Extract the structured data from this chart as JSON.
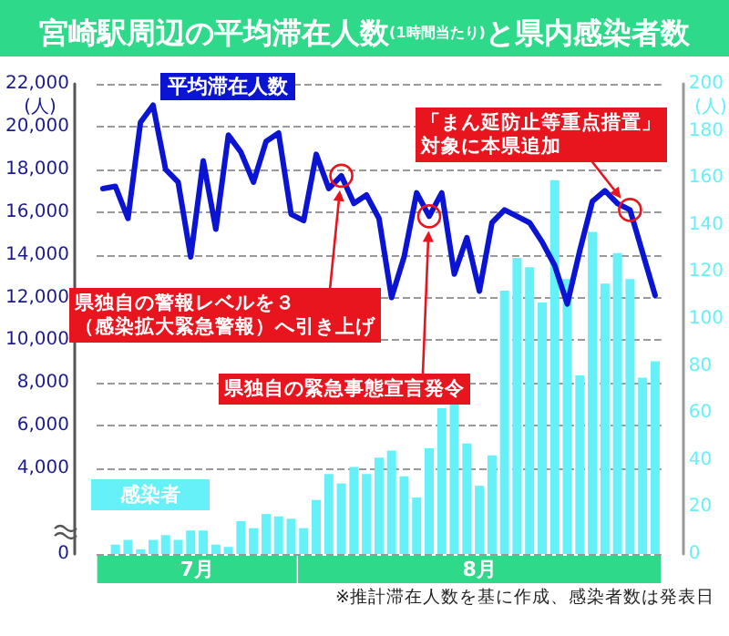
{
  "chart_data": {
    "type": "bar",
    "title": "宮崎駅周辺の平均滞在人数(1時間当たり)と県内感染者数",
    "ylabel": "(人)",
    "y2label": "(人)",
    "categories": [
      null,
      null,
      null,
      null,
      null,
      null,
      null,
      null,
      null,
      null,
      null,
      null,
      null,
      null,
      null,
      null,
      null,
      null,
      null,
      null,
      null,
      null,
      null,
      null,
      null,
      null,
      null,
      null,
      null,
      null,
      null,
      null,
      null,
      null,
      null,
      null,
      null,
      null,
      null,
      null,
      null,
      null,
      null,
      null,
      null
    ],
    "series": [
      {
        "name": "平均滞在人数",
        "type": "line",
        "color": "#0a14d2",
        "values": [
          17100,
          17200,
          15700,
          20200,
          21000,
          18000,
          17400,
          13900,
          18400,
          15200,
          19600,
          18800,
          17400,
          19300,
          19700,
          15900,
          15600,
          18700,
          17100,
          17700,
          16400,
          16800,
          15700,
          12000,
          13900,
          16900,
          15800,
          16900,
          13100,
          14800,
          12300,
          15500,
          16100,
          15800,
          15500,
          14600,
          13500,
          11700,
          14200,
          16500,
          17000,
          16400,
          16100,
          14100,
          12100
        ]
      },
      {
        "name": "感染者",
        "axis": "y2",
        "color": "#66f0f8",
        "values": [
          null,
          4,
          6,
          2,
          6,
          8,
          6,
          10,
          10,
          4,
          3,
          14,
          11,
          17,
          16,
          15,
          11,
          23,
          34,
          30,
          37,
          34,
          41,
          44,
          33,
          24,
          45,
          62,
          64,
          47,
          29,
          42,
          112,
          126,
          122,
          107,
          159,
          117,
          76,
          137,
          115,
          128,
          117,
          75,
          82
        ]
      }
    ],
    "ylim": [
      0,
      22000
    ],
    "yticks": [
      {
        "value": 0,
        "label": "0"
      },
      {
        "value": 4000,
        "label": "4,000"
      },
      {
        "value": 6000,
        "label": "6,000"
      },
      {
        "value": 8000,
        "label": "8,000"
      },
      {
        "value": 10000,
        "label": "10,000"
      },
      {
        "value": 12000,
        "label": "12,000"
      },
      {
        "value": 14000,
        "label": "14,000"
      },
      {
        "value": 16000,
        "label": "16,000"
      },
      {
        "value": 18000,
        "label": "18,000"
      },
      {
        "value": 20000,
        "label": "20,000"
      },
      {
        "value": 22000,
        "label": "22,000"
      }
    ],
    "y2lim": [
      0,
      200
    ],
    "y2ticks": [
      0,
      20,
      40,
      60,
      80,
      100,
      120,
      140,
      160,
      180,
      200
    ],
    "grid": "y",
    "marker": "none",
    "legend": false,
    "annotations": [
      "県独自の警報レベルを３（感染拡大緊急警報）へ引き上げ",
      "県独自の緊急事態宣言発令",
      "「まん延防止等重点措置」対象に本県追加",
      "7月",
      "8月",
      "※推計滞在人数を基に作成、感染者数は発表日"
    ]
  }
}
